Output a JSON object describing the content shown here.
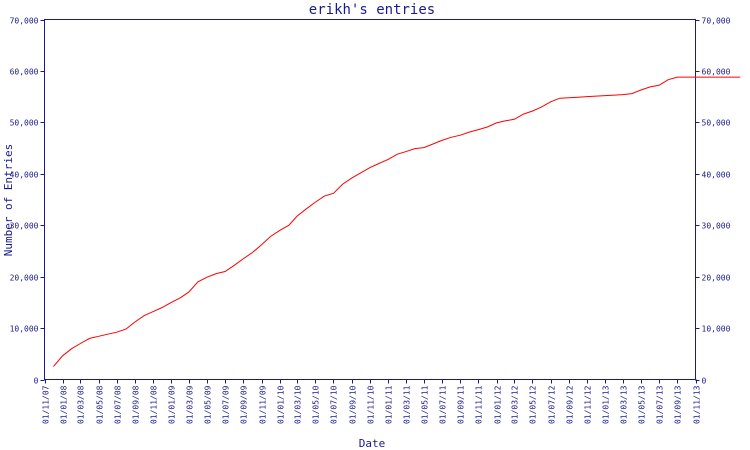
{
  "chart_data": {
    "type": "line",
    "title": "erikh's entries",
    "xlabel": "Date",
    "ylabel": "Number of Entries",
    "ylim": [
      0,
      70000
    ],
    "y_ticks": [
      "0",
      "10,000",
      "20,000",
      "30,000",
      "40,000",
      "50,000",
      "60,000",
      "70,000"
    ],
    "y_tick_values": [
      0,
      10000,
      20000,
      30000,
      40000,
      50000,
      60000,
      70000
    ],
    "x_ticks": [
      "01/11/07",
      "01/01/08",
      "01/03/08",
      "01/05/08",
      "01/07/08",
      "01/09/08",
      "01/11/08",
      "01/01/09",
      "01/03/09",
      "01/05/09",
      "01/07/09",
      "01/09/09",
      "01/11/09",
      "01/01/10",
      "01/03/10",
      "01/05/10",
      "01/07/10",
      "01/09/10",
      "01/11/10",
      "01/01/11",
      "01/03/11",
      "01/05/11",
      "01/07/11",
      "01/09/11",
      "01/11/11",
      "01/01/12",
      "01/03/12",
      "01/05/12",
      "01/07/12",
      "01/09/12",
      "01/11/12",
      "01/01/13",
      "01/03/13",
      "01/05/13",
      "01/07/13",
      "01/09/13",
      "01/11/13"
    ],
    "x_tick_dates": [
      "2007-11-01",
      "2008-01-01",
      "2008-03-01",
      "2008-05-01",
      "2008-07-01",
      "2008-09-01",
      "2008-11-01",
      "2009-01-01",
      "2009-03-01",
      "2009-05-01",
      "2009-07-01",
      "2009-09-01",
      "2009-11-01",
      "2010-01-01",
      "2010-03-01",
      "2010-05-01",
      "2010-07-01",
      "2010-09-01",
      "2010-11-01",
      "2011-01-01",
      "2011-03-01",
      "2011-05-01",
      "2011-07-01",
      "2011-09-01",
      "2011-11-01",
      "2012-01-01",
      "2012-03-01",
      "2012-05-01",
      "2012-07-01",
      "2012-09-01",
      "2012-11-01",
      "2013-01-01",
      "2013-03-01",
      "2013-05-01",
      "2013-07-01",
      "2013-09-01",
      "2013-11-01"
    ],
    "grid": false,
    "series": [
      {
        "color": "#ff0000",
        "points": [
          [
            "2007-12-01",
            2500
          ],
          [
            "2008-01-01",
            4600
          ],
          [
            "2008-02-01",
            6000
          ],
          [
            "2008-03-01",
            7000
          ],
          [
            "2008-04-01",
            8000
          ],
          [
            "2008-05-01",
            8400
          ],
          [
            "2008-06-01",
            8800
          ],
          [
            "2008-07-01",
            9200
          ],
          [
            "2008-08-01",
            9800
          ],
          [
            "2008-09-01",
            11200
          ],
          [
            "2008-10-01",
            12400
          ],
          [
            "2008-11-01",
            13200
          ],
          [
            "2008-12-01",
            14000
          ],
          [
            "2009-01-01",
            15000
          ],
          [
            "2009-02-01",
            15900
          ],
          [
            "2009-03-01",
            17000
          ],
          [
            "2009-04-01",
            19000
          ],
          [
            "2009-05-01",
            19900
          ],
          [
            "2009-06-01",
            20600
          ],
          [
            "2009-07-01",
            21000
          ],
          [
            "2009-08-01",
            22200
          ],
          [
            "2009-09-01",
            23500
          ],
          [
            "2009-10-01",
            24700
          ],
          [
            "2009-11-01",
            26200
          ],
          [
            "2009-12-01",
            27800
          ],
          [
            "2010-01-01",
            29000
          ],
          [
            "2010-02-01",
            30000
          ],
          [
            "2010-03-01",
            31800
          ],
          [
            "2010-04-01",
            33200
          ],
          [
            "2010-05-01",
            34500
          ],
          [
            "2010-06-01",
            35700
          ],
          [
            "2010-07-01",
            36200
          ],
          [
            "2010-08-01",
            38000
          ],
          [
            "2010-09-01",
            39200
          ],
          [
            "2010-10-01",
            40200
          ],
          [
            "2010-11-01",
            41200
          ],
          [
            "2010-12-01",
            42000
          ],
          [
            "2011-01-01",
            42800
          ],
          [
            "2011-02-01",
            43800
          ],
          [
            "2011-03-01",
            44300
          ],
          [
            "2011-04-01",
            44900
          ],
          [
            "2011-05-01",
            45100
          ],
          [
            "2011-06-01",
            45800
          ],
          [
            "2011-07-01",
            46500
          ],
          [
            "2011-08-01",
            47100
          ],
          [
            "2011-09-01",
            47500
          ],
          [
            "2011-10-01",
            48100
          ],
          [
            "2011-11-01",
            48600
          ],
          [
            "2011-12-01",
            49100
          ],
          [
            "2012-01-01",
            49900
          ],
          [
            "2012-02-01",
            50300
          ],
          [
            "2012-03-01",
            50600
          ],
          [
            "2012-04-01",
            51600
          ],
          [
            "2012-05-01",
            52200
          ],
          [
            "2012-06-01",
            53000
          ],
          [
            "2012-07-01",
            54000
          ],
          [
            "2012-08-01",
            54700
          ],
          [
            "2012-09-01",
            54800
          ],
          [
            "2012-10-01",
            54900
          ],
          [
            "2012-11-01",
            55000
          ],
          [
            "2012-12-01",
            55100
          ],
          [
            "2013-01-01",
            55200
          ],
          [
            "2013-02-01",
            55300
          ],
          [
            "2013-03-01",
            55400
          ],
          [
            "2013-04-01",
            55600
          ],
          [
            "2013-05-01",
            56300
          ],
          [
            "2013-06-01",
            56900
          ],
          [
            "2013-07-01",
            57200
          ],
          [
            "2013-08-01",
            58300
          ],
          [
            "2013-09-01",
            58800
          ],
          [
            "2013-10-01",
            58800
          ],
          [
            "2013-11-01",
            58800
          ],
          [
            "2013-12-01",
            58800
          ],
          [
            "2014-01-01",
            58800
          ],
          [
            "2014-02-01",
            58800
          ],
          [
            "2014-03-01",
            58800
          ],
          [
            "2014-04-01",
            58800
          ]
        ]
      }
    ]
  }
}
